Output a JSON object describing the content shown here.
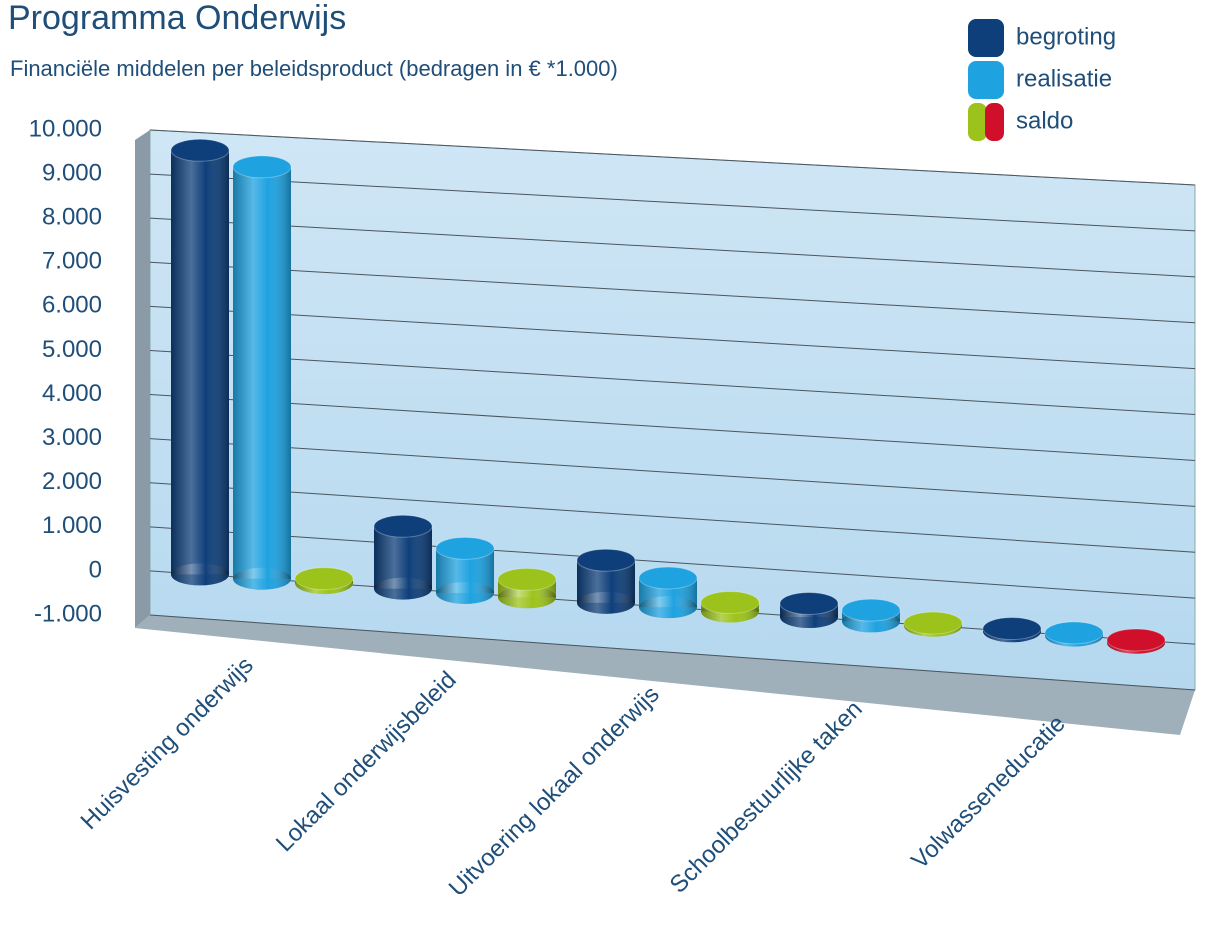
{
  "chart_data": {
    "type": "bar3d",
    "title": "Programma Onderwijs",
    "subtitle": "Financiële middelen per beleidsproduct  (bedragen in € *1.000)",
    "categories": [
      "Huisvesting onderwijs",
      "Lokaal onderwijsbeleid",
      "Uitvoering lokaal onderwijs",
      "Schoolbestuurlijke taken",
      "Volwasseneducatie"
    ],
    "series": [
      {
        "name": "begroting",
        "color": "#0f3f7a",
        "values": [
          9600,
          1400,
          950,
          300,
          60
        ]
      },
      {
        "name": "realisatie",
        "color": "#1ea2e0",
        "values": [
          9300,
          1000,
          650,
          250,
          60
        ]
      },
      {
        "name": "saldo",
        "color": "#9cc31b",
        "negative_color": "#d0102a",
        "values": [
          100,
          400,
          200,
          60,
          -60
        ]
      }
    ],
    "ylim": [
      -1000,
      10000
    ],
    "yticks": [
      {
        "value": -1000,
        "label": "-1.000"
      },
      0,
      {
        "value": 1000,
        "label": "1.000"
      },
      {
        "value": 2000,
        "label": "2.000"
      },
      {
        "value": 3000,
        "label": "3.000"
      },
      {
        "value": 4000,
        "label": "4.000"
      },
      {
        "value": 5000,
        "label": "5.000"
      },
      {
        "value": 6000,
        "label": "6.000"
      },
      {
        "value": 7000,
        "label": "7.000"
      },
      {
        "value": 8000,
        "label": "8.000"
      },
      {
        "value": 9000,
        "label": "9.000"
      },
      {
        "value": 10000,
        "label": "10.000"
      }
    ],
    "grid": true,
    "legend": "top-right"
  }
}
